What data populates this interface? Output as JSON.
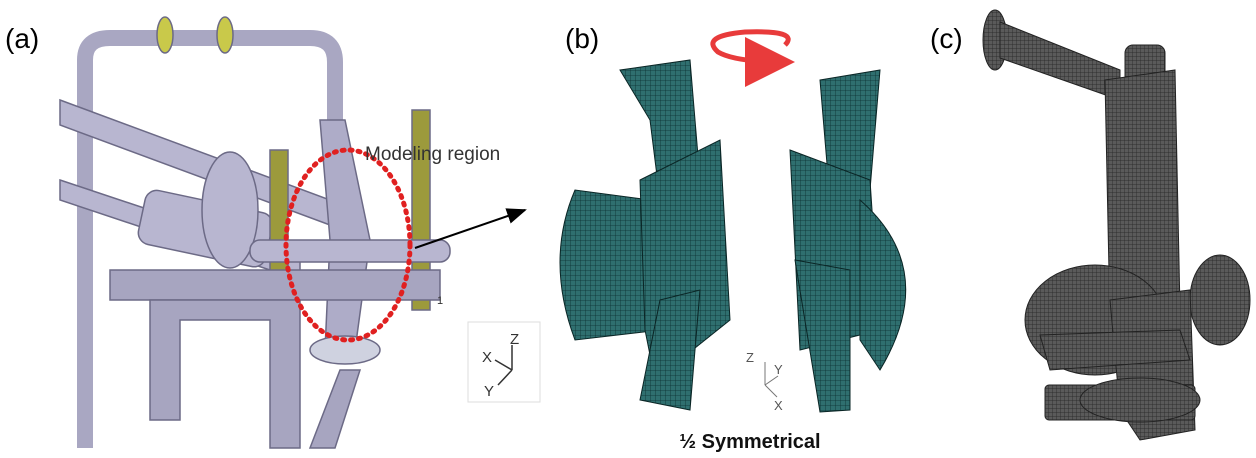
{
  "panels": [
    {
      "label": "(a)",
      "annotation": "Modeling region",
      "axes": [
        "X",
        "Z",
        "Y"
      ],
      "marker": "1"
    },
    {
      "label": "(b)",
      "caption": "½ Symmetrical",
      "axes": [
        "Z",
        "Y",
        "X"
      ]
    },
    {
      "label": "(c)"
    }
  ]
}
